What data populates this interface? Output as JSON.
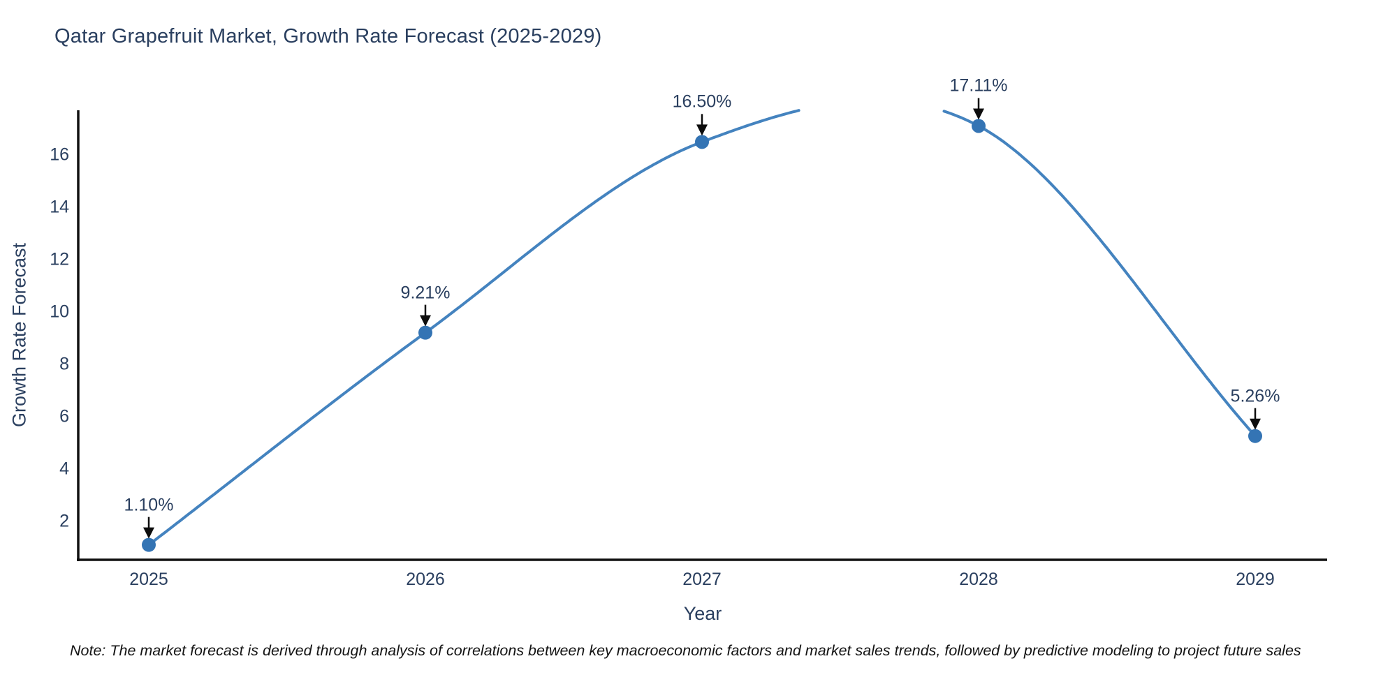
{
  "note": "Note: The market forecast is derived through analysis of correlations between key macroeconomic factors and market sales trends, followed by predictive modeling to project future sales",
  "chart_data": {
    "type": "line",
    "line_shape": "spline",
    "title": "Qatar Grapefruit Market, Growth Rate Forecast (2025-2029)",
    "xlabel": "Year",
    "ylabel": "Growth Rate Forecast",
    "x": [
      2025,
      2026,
      2027,
      2028,
      2029
    ],
    "series": [
      {
        "name": "Growth Rate Forecast",
        "values": [
          1.1,
          9.21,
          16.5,
          17.11,
          5.26
        ]
      }
    ],
    "point_labels": [
      "1.10%",
      "9.21%",
      "16.50%",
      "17.11%",
      "5.26%"
    ],
    "yticks": [
      2,
      4,
      6,
      8,
      10,
      12,
      14,
      16
    ],
    "ylim": [
      0.53,
      17.71
    ],
    "grid": false,
    "legend": "none",
    "colors": {
      "line": "#4483bf",
      "marker": "#3474b4",
      "axis": "#111111",
      "text": "#2a3f5f",
      "annotation_arrow": "#0d0d0d"
    }
  }
}
